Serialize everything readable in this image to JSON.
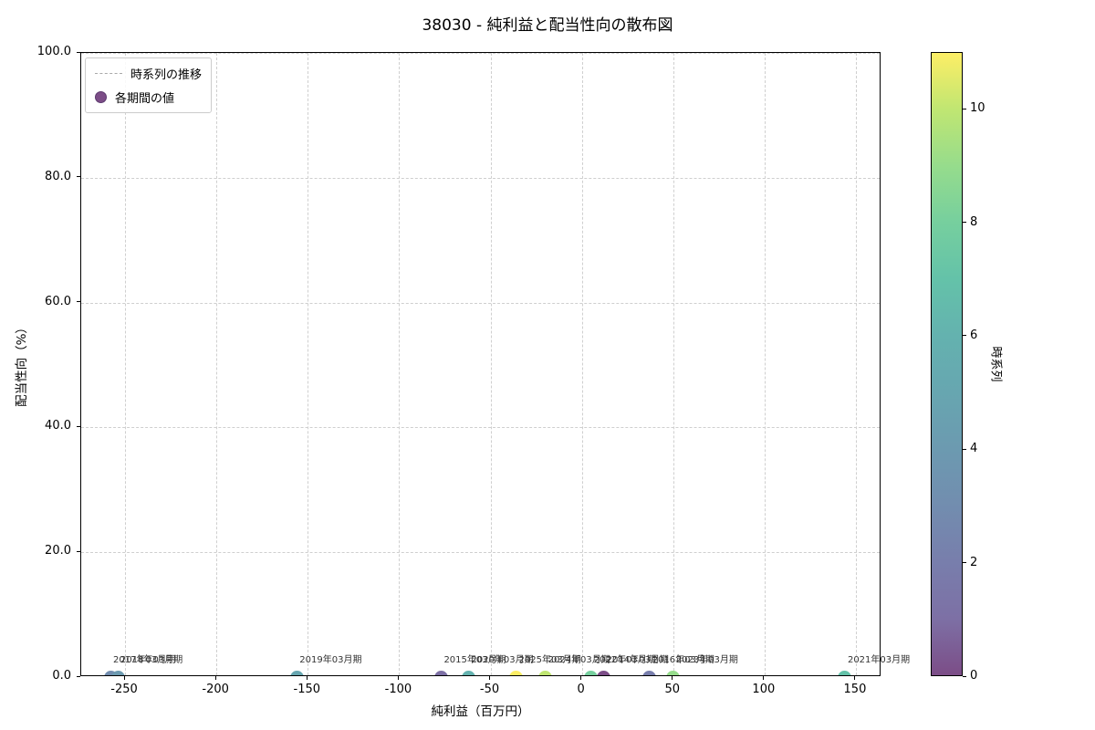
{
  "title": "38030 - 純利益と配当性向の散布図",
  "legend": {
    "line_label": "時系列の推移",
    "marker_label": "各期間の値"
  },
  "chart_data": {
    "type": "scatter",
    "title": "38030 - 純利益と配当性向の散布図",
    "xlabel": "純利益（百万円）",
    "ylabel": "配当性向（%）",
    "xlim": [
      -274,
      164
    ],
    "ylim": [
      0,
      100
    ],
    "x_ticks": [
      -250,
      -200,
      -150,
      -100,
      -50,
      0,
      50,
      100,
      150
    ],
    "y_ticks": [
      0,
      20,
      40,
      60,
      80,
      100
    ],
    "y_tick_labels": [
      "0.0",
      "20.0",
      "40.0",
      "60.0",
      "80.0",
      "100.0"
    ],
    "grid": true,
    "points": [
      {
        "label": "2014年03月期",
        "x": 12,
        "y": 0.0,
        "t": 0,
        "color": "#7C4D87"
      },
      {
        "label": "2015年03月期",
        "x": -77,
        "y": 0.0,
        "t": 1,
        "color": "#7D70A5"
      },
      {
        "label": "2016年03月期",
        "x": 37,
        "y": 0.0,
        "t": 2,
        "color": "#787EAC"
      },
      {
        "label": "2017年03月期",
        "x": -258,
        "y": 0.0,
        "t": 3,
        "color": "#728DAF"
      },
      {
        "label": "2018年03月期",
        "x": -254,
        "y": 0.0,
        "t": 4,
        "color": "#6C9AB0"
      },
      {
        "label": "2019年03月期",
        "x": -156,
        "y": 0.0,
        "t": 5,
        "color": "#67A6B0"
      },
      {
        "label": "2020年03月期",
        "x": -62,
        "y": 0.0,
        "t": 6,
        "color": "#64B2AF"
      },
      {
        "label": "2021年03月期",
        "x": 144,
        "y": 0.0,
        "t": 7,
        "color": "#64C2A9"
      },
      {
        "label": "2022年03月期",
        "x": 5,
        "y": 0.0,
        "t": 8,
        "color": "#76CF9E"
      },
      {
        "label": "2023年03月期",
        "x": 50,
        "y": 0.0,
        "t": 9,
        "color": "#96DC8C"
      },
      {
        "label": "2024年03月期",
        "x": -20,
        "y": 0.0,
        "t": 10,
        "color": "#C0E672"
      },
      {
        "label": "2025年03月期",
        "x": -36,
        "y": 0.0,
        "t": 11,
        "color": "#FDEE66"
      }
    ],
    "colorbar": {
      "label": "時系列",
      "vmin": 0,
      "vmax": 11,
      "ticks": [
        0,
        2,
        4,
        6,
        8,
        10
      ],
      "gradient_bottom_to_top": [
        "#7C4D87",
        "#7D70A5",
        "#787EAC",
        "#728DAF",
        "#6C9AB0",
        "#67A6B0",
        "#64B2AF",
        "#64C2A9",
        "#76CF9E",
        "#96DC8C",
        "#C0E672",
        "#FDEE66"
      ]
    }
  }
}
